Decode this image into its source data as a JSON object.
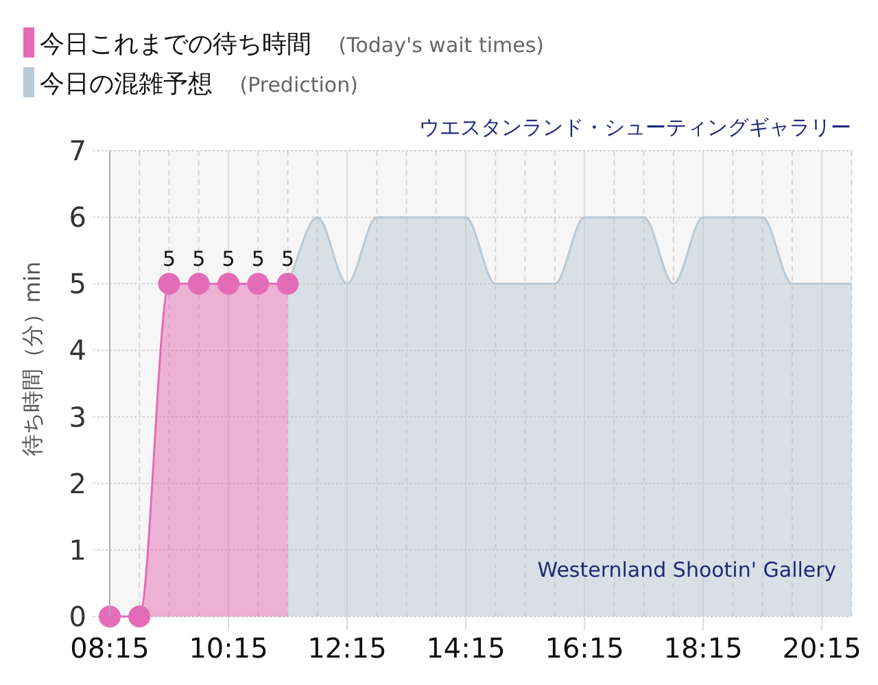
{
  "chart_data": {
    "type": "area",
    "title": "ウエスタンランド・シューティングギャラリー",
    "ylabel": "待ち時間（分）min",
    "annotations": [
      "Westernland Shootin' Gallery"
    ],
    "xlim": [
      8.25,
      20.75
    ],
    "xticks": [
      {
        "value": 8.25,
        "label": "08:15"
      },
      {
        "value": 8.75,
        "label": null
      },
      {
        "value": 9.25,
        "label": null
      },
      {
        "value": 9.75,
        "label": null
      },
      {
        "value": 10.25,
        "label": "10:15"
      },
      {
        "value": 10.75,
        "label": null
      },
      {
        "value": 11.25,
        "label": null
      },
      {
        "value": 11.75,
        "label": null
      },
      {
        "value": 12.25,
        "label": "12:15"
      },
      {
        "value": 12.75,
        "label": null
      },
      {
        "value": 13.25,
        "label": null
      },
      {
        "value": 13.75,
        "label": null
      },
      {
        "value": 14.25,
        "label": "14:15"
      },
      {
        "value": 14.75,
        "label": null
      },
      {
        "value": 15.25,
        "label": null
      },
      {
        "value": 15.75,
        "label": null
      },
      {
        "value": 16.25,
        "label": "16:15"
      },
      {
        "value": 16.75,
        "label": null
      },
      {
        "value": 17.25,
        "label": null
      },
      {
        "value": 17.75,
        "label": null
      },
      {
        "value": 18.25,
        "label": "18:15"
      },
      {
        "value": 18.75,
        "label": null
      },
      {
        "value": 19.25,
        "label": null
      },
      {
        "value": 19.75,
        "label": null
      },
      {
        "value": 20.25,
        "label": "20:15"
      },
      {
        "value": 20.75,
        "label": null
      }
    ],
    "ylim": [
      0,
      7
    ],
    "yticks": [
      0,
      1,
      2,
      3,
      4,
      5,
      6,
      7
    ],
    "grid": true,
    "legend": "top left",
    "series": [
      {
        "name": "今日の混雑予想 (Prediction)",
        "color": "#b9c9d6",
        "x": [
          11.25,
          11.75,
          12.25,
          12.75,
          13.25,
          13.75,
          14.25,
          14.75,
          15.25,
          15.75,
          16.25,
          16.75,
          17.25,
          17.75,
          18.25,
          18.75,
          19.25,
          19.75,
          20.25,
          20.75
        ],
        "values": [
          5,
          6,
          5,
          6,
          6,
          6,
          6,
          5,
          5,
          5,
          6,
          6,
          6,
          5,
          6,
          6,
          6,
          5,
          5,
          5
        ]
      },
      {
        "name": "今日これまでの待ち時間 (Today's wait times)",
        "color": "#e46cb6",
        "marker": "circle",
        "x": [
          8.25,
          8.75,
          9.25,
          9.75,
          10.25,
          10.75,
          11.25
        ],
        "values": [
          0,
          0,
          5,
          5,
          5,
          5,
          5
        ],
        "value_labels": [
          null,
          null,
          "5",
          "5",
          "5",
          "5",
          "5"
        ]
      }
    ]
  }
}
